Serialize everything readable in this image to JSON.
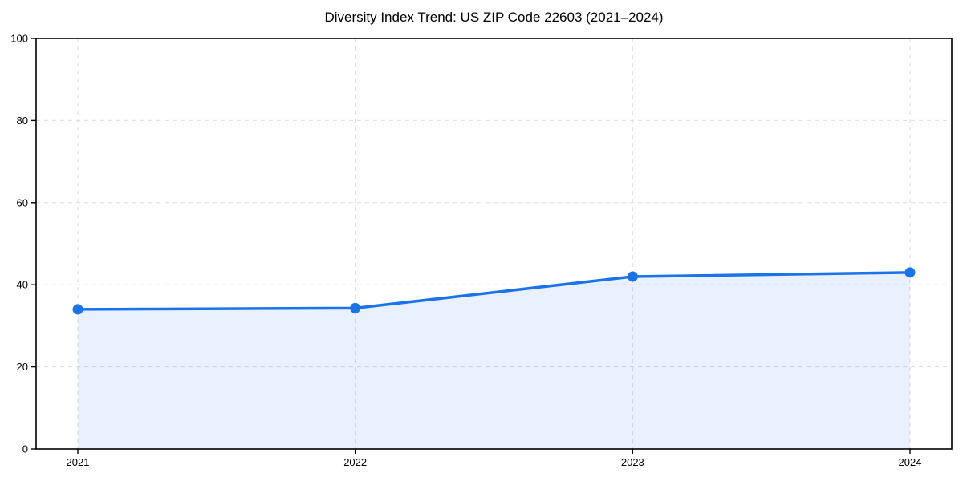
{
  "chart_data": {
    "type": "area",
    "title": "Diversity Index Trend: US ZIP Code 22603 (2021–2024)",
    "categories": [
      "2021",
      "2022",
      "2023",
      "2024"
    ],
    "series": [
      {
        "name": "Diversity Index",
        "values": [
          34,
          34.3,
          42,
          43
        ]
      }
    ],
    "xlabel": "",
    "ylabel": "",
    "ylim": [
      0,
      100
    ],
    "yticks": [
      0,
      20,
      40,
      60,
      80,
      100
    ],
    "legend": "none",
    "grid": {
      "visible": true,
      "style": "dashed",
      "axes": "both"
    },
    "markers": "circle",
    "colors": {
      "line": "#1a73e8",
      "marker": "#1a73e8",
      "area_fill": "rgba(26,115,232,0.10)",
      "gridline": "#dcdcdc",
      "spine": "#000000",
      "tick_label": "#000000",
      "title": "#000000",
      "background": "#ffffff"
    }
  }
}
